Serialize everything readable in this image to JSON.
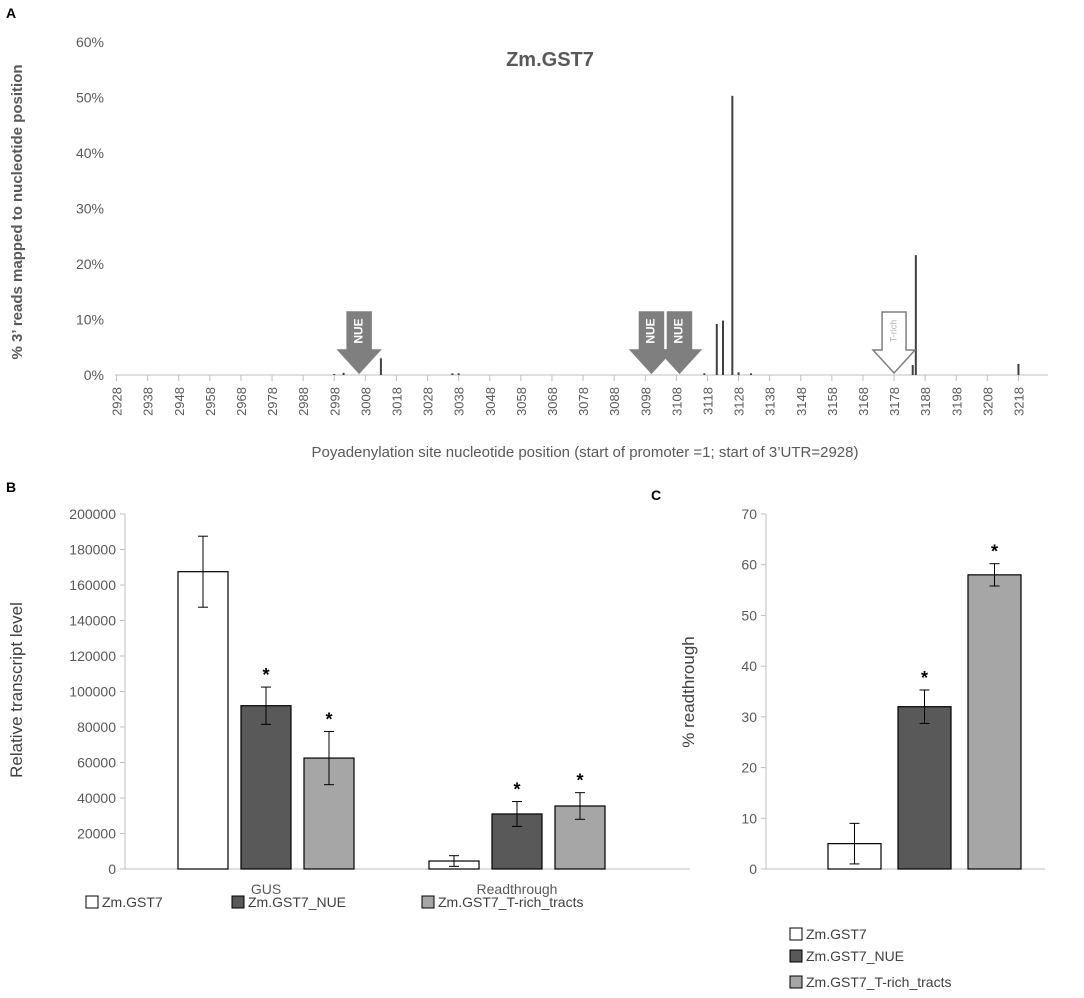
{
  "figure": {
    "colors": {
      "white_bar": "#ffffff",
      "dark_bar": "#595959",
      "light_bar": "#a6a6a6",
      "outline": "#000000",
      "axis": "#bfbfbf",
      "text": "#595959",
      "arrow_fill": "#7f7f7f"
    }
  },
  "chart_data": [
    {
      "panel": "A",
      "type": "bar",
      "title": "Zm.GST7",
      "xlabel": "Poyadenylation site nucleotide position (start of promoter =1; start of 3’UTR=2928)",
      "ylabel": "% 3’ reads mapped to nucleotide position",
      "xlim": [
        2928,
        3227
      ],
      "ylim": [
        0,
        60
      ],
      "yticks": [
        "0%",
        "10%",
        "20%",
        "30%",
        "40%",
        "50%",
        "60%"
      ],
      "xticks": [
        2928,
        2938,
        2948,
        2958,
        2968,
        2978,
        2988,
        2998,
        3008,
        3018,
        3028,
        3038,
        3048,
        3058,
        3068,
        3078,
        3088,
        3098,
        3108,
        3118,
        3128,
        3138,
        3148,
        3158,
        3168,
        3178,
        3188,
        3198,
        3208,
        3218
      ],
      "peaks": [
        {
          "x": 2998,
          "y": 0.2
        },
        {
          "x": 3001,
          "y": 0.4
        },
        {
          "x": 3013,
          "y": 3.0
        },
        {
          "x": 3036,
          "y": 0.3
        },
        {
          "x": 3038,
          "y": 0.3
        },
        {
          "x": 3117,
          "y": 0.3
        },
        {
          "x": 3121,
          "y": 9.2
        },
        {
          "x": 3123,
          "y": 9.8
        },
        {
          "x": 3126,
          "y": 50.3
        },
        {
          "x": 3128,
          "y": 0.5
        },
        {
          "x": 3132,
          "y": 0.3
        },
        {
          "x": 3184,
          "y": 1.8
        },
        {
          "x": 3185,
          "y": 21.6
        },
        {
          "x": 3218,
          "y": 2.0
        }
      ],
      "annotations": [
        {
          "label": "NUE",
          "x": 3006,
          "style": "filled"
        },
        {
          "label": "NUE",
          "x": 3100,
          "style": "filled"
        },
        {
          "label": "NUE",
          "x": 3109,
          "style": "filled"
        },
        {
          "label": "T-rich",
          "x": 3178,
          "style": "outline"
        }
      ]
    },
    {
      "panel": "B",
      "type": "bar",
      "ylabel": "Relative transcript level",
      "ylim": [
        0,
        200000
      ],
      "yticks": [
        "0",
        "20000",
        "40000",
        "60000",
        "80000",
        "100000",
        "120000",
        "140000",
        "160000",
        "180000",
        "200000"
      ],
      "categories": [
        "GUS",
        "Readthrough"
      ],
      "series": [
        {
          "name": "Zm.GST7",
          "values": [
            167500,
            4500
          ],
          "errors": [
            20000,
            3000
          ],
          "sig": [
            "",
            ""
          ]
        },
        {
          "name": "Zm.GST7_NUE",
          "values": [
            92000,
            31000
          ],
          "errors": [
            10500,
            7000
          ],
          "sig": [
            "*",
            "*"
          ]
        },
        {
          "name": "Zm.GST7_T-rich_tracts",
          "values": [
            62500,
            35500
          ],
          "errors": [
            15000,
            7500
          ],
          "sig": [
            "*",
            "*"
          ]
        }
      ],
      "legend": [
        "Zm.GST7",
        "Zm.GST7_NUE",
        "Zm.GST7_T-rich_tracts"
      ]
    },
    {
      "panel": "C",
      "type": "bar",
      "ylabel": "% readthrough",
      "ylim": [
        0,
        70
      ],
      "yticks": [
        "0",
        "10",
        "20",
        "30",
        "40",
        "50",
        "60",
        "70"
      ],
      "categories": [
        ""
      ],
      "series": [
        {
          "name": "Zm.GST7",
          "values": [
            5
          ],
          "errors": [
            4
          ],
          "sig": [
            ""
          ]
        },
        {
          "name": "Zm.GST7_NUE",
          "values": [
            32
          ],
          "errors": [
            3.3
          ],
          "sig": [
            "*"
          ]
        },
        {
          "name": "Zm.GST7_T-rich_tracts",
          "values": [
            58
          ],
          "errors": [
            2.2
          ],
          "sig": [
            "*"
          ]
        }
      ],
      "legend": [
        "Zm.GST7",
        "Zm.GST7_NUE",
        "Zm.GST7_T-rich_tracts"
      ]
    }
  ]
}
